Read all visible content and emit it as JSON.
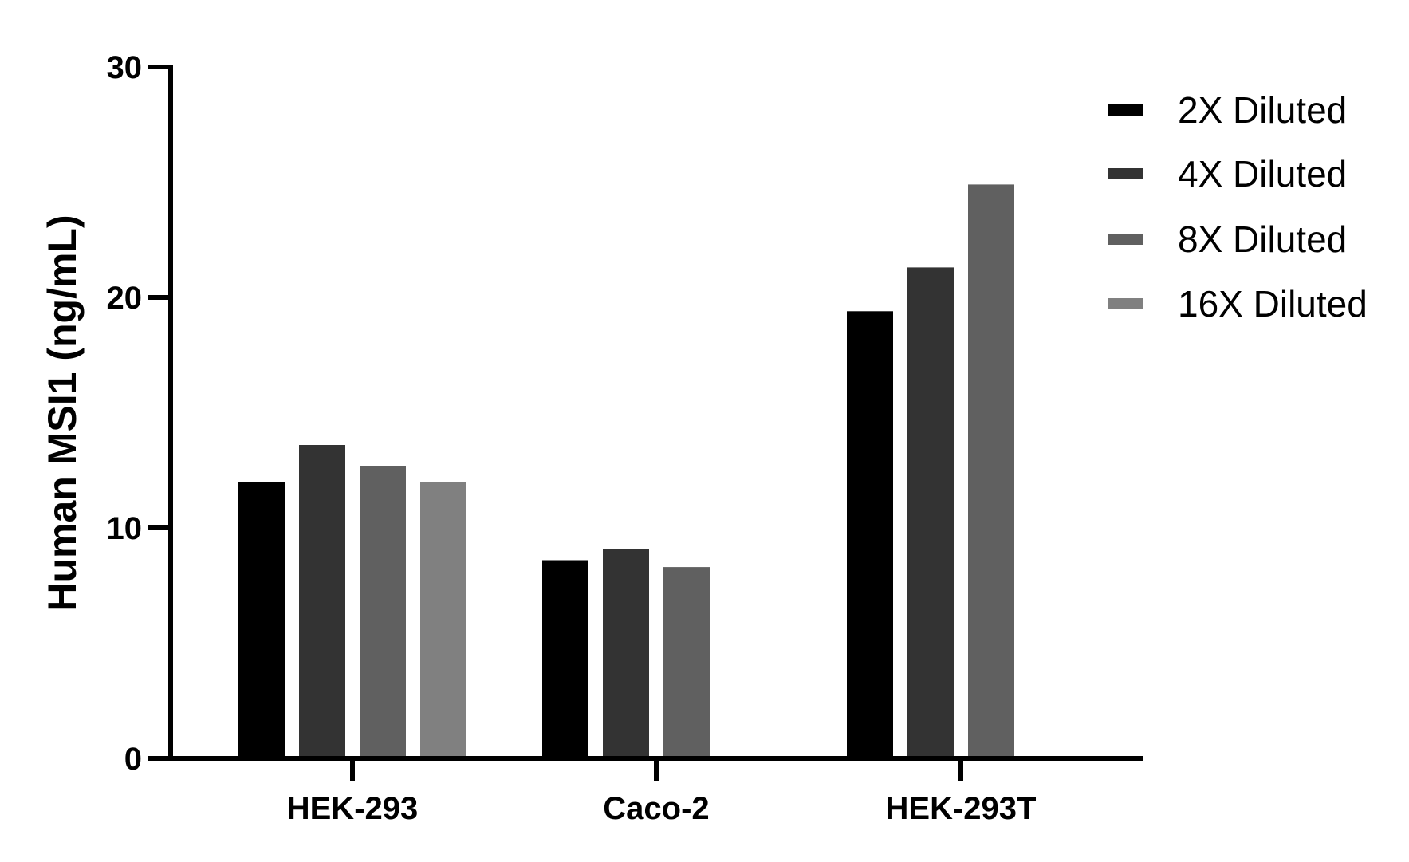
{
  "chart_data": {
    "type": "bar",
    "title": "",
    "xlabel": "",
    "ylabel": "Human MSI1  (ng/mL)",
    "ylim": [
      0,
      30
    ],
    "yticks": [
      "0",
      "10",
      "20",
      "30"
    ],
    "grid": false,
    "legend_position": "top-right",
    "categories": [
      "HEK-293",
      "Caco-2",
      "HEK-293T"
    ],
    "series": [
      {
        "name": "2X Diluted",
        "color": "#000000",
        "values": [
          12.0,
          8.6,
          19.4
        ]
      },
      {
        "name": "4X Diluted",
        "color": "#333333",
        "values": [
          13.6,
          9.1,
          21.3
        ]
      },
      {
        "name": "8X Diluted",
        "color": "#606060",
        "values": [
          12.7,
          8.3,
          24.9
        ]
      },
      {
        "name": "16X Diluted",
        "color": "#808080",
        "values": [
          12.0,
          null,
          null
        ]
      }
    ]
  }
}
